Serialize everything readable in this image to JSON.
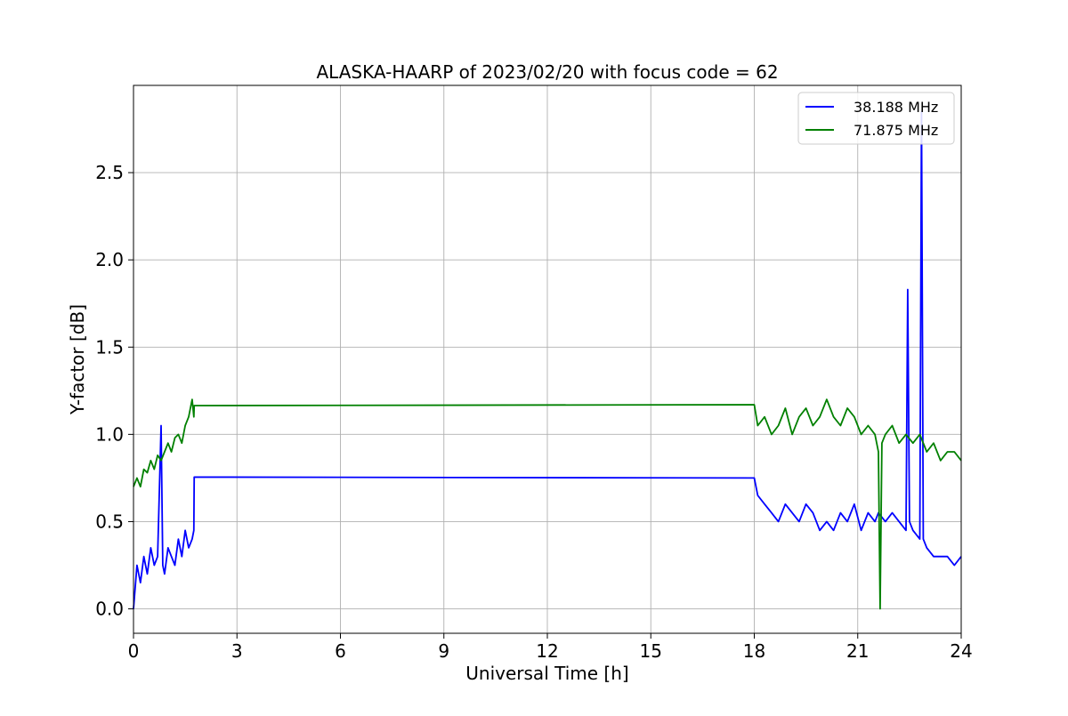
{
  "chart_data": {
    "type": "line",
    "title": "ALASKA-HAARP of 2023/02/20 with focus code = 62",
    "xlabel": "Universal Time [h]",
    "ylabel": "Y-factor [dB]",
    "xlim": [
      0,
      24
    ],
    "ylim": [
      -0.14,
      3.0
    ],
    "xticks": [
      0,
      3,
      6,
      9,
      12,
      15,
      18,
      21,
      24
    ],
    "xtick_labels": [
      "0",
      "3",
      "6",
      "9",
      "12",
      "15",
      "18",
      "21",
      "24"
    ],
    "yticks": [
      0.0,
      0.5,
      1.0,
      1.5,
      2.0,
      2.5
    ],
    "ytick_labels": [
      "0.0",
      "0.5",
      "1.0",
      "1.5",
      "2.0",
      "2.5"
    ],
    "grid": true,
    "legend_position": "top-right",
    "series": [
      {
        "name": "38.188 MHz",
        "color": "#0000ff",
        "x": [
          0.0,
          0.1,
          0.2,
          0.3,
          0.4,
          0.5,
          0.6,
          0.7,
          0.8,
          0.85,
          0.9,
          1.0,
          1.1,
          1.2,
          1.3,
          1.4,
          1.5,
          1.6,
          1.7,
          1.75,
          1.76,
          18.0,
          18.1,
          18.3,
          18.5,
          18.7,
          18.9,
          19.1,
          19.3,
          19.5,
          19.7,
          19.9,
          20.1,
          20.3,
          20.5,
          20.7,
          20.9,
          21.1,
          21.3,
          21.5,
          21.6,
          21.8,
          22.0,
          22.2,
          22.4,
          22.45,
          22.5,
          22.6,
          22.8,
          22.85,
          22.9,
          23.0,
          23.2,
          23.4,
          23.6,
          23.8,
          24.0
        ],
        "y": [
          0.0,
          0.25,
          0.15,
          0.3,
          0.2,
          0.35,
          0.25,
          0.3,
          1.05,
          0.25,
          0.2,
          0.35,
          0.3,
          0.25,
          0.4,
          0.3,
          0.45,
          0.35,
          0.4,
          0.45,
          0.755,
          0.75,
          0.65,
          0.6,
          0.55,
          0.5,
          0.6,
          0.55,
          0.5,
          0.6,
          0.55,
          0.45,
          0.5,
          0.45,
          0.55,
          0.5,
          0.6,
          0.45,
          0.55,
          0.5,
          0.55,
          0.5,
          0.55,
          0.5,
          0.45,
          1.83,
          0.5,
          0.45,
          0.4,
          2.85,
          0.4,
          0.35,
          0.3,
          0.3,
          0.3,
          0.25,
          0.3
        ]
      },
      {
        "name": "71.875 MHz",
        "color": "#008000",
        "x": [
          0.0,
          0.1,
          0.2,
          0.3,
          0.4,
          0.5,
          0.6,
          0.7,
          0.8,
          0.9,
          1.0,
          1.1,
          1.2,
          1.3,
          1.4,
          1.5,
          1.6,
          1.7,
          1.75,
          1.76,
          18.0,
          18.1,
          18.3,
          18.5,
          18.7,
          18.9,
          19.1,
          19.3,
          19.5,
          19.7,
          19.9,
          20.1,
          20.3,
          20.5,
          20.7,
          20.9,
          21.1,
          21.3,
          21.5,
          21.6,
          21.65,
          21.7,
          21.8,
          22.0,
          22.2,
          22.4,
          22.6,
          22.8,
          23.0,
          23.2,
          23.4,
          23.6,
          23.8,
          24.0
        ],
        "y": [
          0.7,
          0.75,
          0.7,
          0.8,
          0.78,
          0.85,
          0.8,
          0.88,
          0.85,
          0.9,
          0.95,
          0.9,
          0.98,
          1.0,
          0.95,
          1.05,
          1.1,
          1.2,
          1.1,
          1.165,
          1.17,
          1.05,
          1.1,
          1.0,
          1.05,
          1.15,
          1.0,
          1.1,
          1.15,
          1.05,
          1.1,
          1.2,
          1.1,
          1.05,
          1.15,
          1.1,
          1.0,
          1.05,
          1.0,
          0.9,
          0.0,
          0.95,
          1.0,
          1.05,
          0.95,
          1.0,
          0.95,
          1.0,
          0.9,
          0.95,
          0.85,
          0.9,
          0.9,
          0.85
        ]
      }
    ]
  }
}
